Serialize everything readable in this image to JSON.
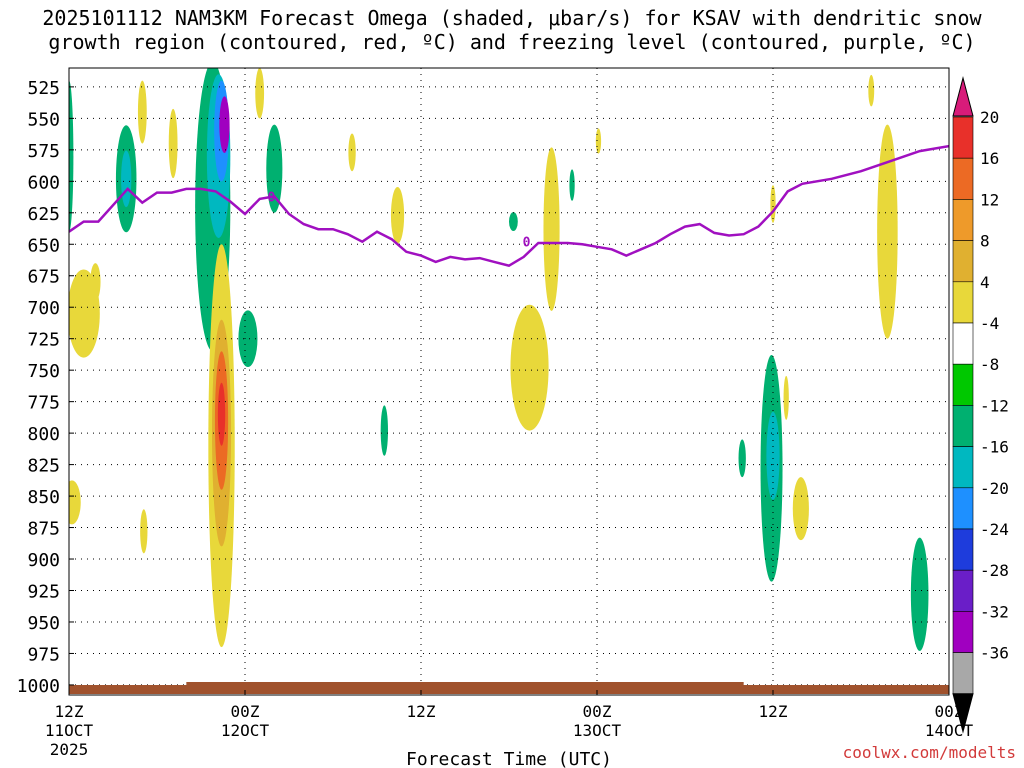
{
  "title": {
    "line1": "2025101112 NAM3KM Forecast Omega (shaded, μbar/s) for KSAV with dendritic snow",
    "line2": "growth region (contoured, red, ºC) and freezing level (contoured, purple, ºC)"
  },
  "watermark": "coolwx.com/modelts",
  "chart_data": {
    "type": "heatmap",
    "xlabel": "Forecast Time (UTC)",
    "x_ticks": [
      {
        "hour": 0,
        "line1": "12Z",
        "line2": "11OCT",
        "line3": "2025"
      },
      {
        "hour": 12,
        "line1": "00Z",
        "line2": "12OCT",
        "line3": ""
      },
      {
        "hour": 24,
        "line1": "12Z",
        "line2": "",
        "line3": ""
      },
      {
        "hour": 36,
        "line1": "00Z",
        "line2": "13OCT",
        "line3": ""
      },
      {
        "hour": 48,
        "line1": "12Z",
        "line2": "",
        "line3": ""
      },
      {
        "hour": 60,
        "line1": "00Z",
        "line2": "14OCT",
        "line3": ""
      }
    ],
    "xlim": [
      0,
      60
    ],
    "y_ticks": [
      525,
      550,
      575,
      600,
      625,
      650,
      675,
      700,
      725,
      750,
      775,
      800,
      825,
      850,
      875,
      900,
      925,
      950,
      975,
      1000
    ],
    "ylim": [
      510,
      1008
    ],
    "colorbar": {
      "labels": [
        "20",
        "16",
        "12",
        "8",
        "4",
        "-4",
        "-8",
        "-12",
        "-16",
        "-20",
        "-24",
        "-28",
        "-32",
        "-36"
      ],
      "colors": [
        "#d81b7a",
        "#e8302a",
        "#ec6a24",
        "#ee9a2a",
        "#e0b030",
        "#e8d83a",
        "#ffffff",
        "#00c800",
        "#00b070",
        "#00b8c0",
        "#1e90ff",
        "#1e3cdc",
        "#6a1ec8",
        "#a000c0",
        "#a8a8a8",
        "#000000"
      ]
    },
    "freezing_level": {
      "color": "#a010c0",
      "label": "0",
      "points": [
        [
          0,
          640
        ],
        [
          1,
          632
        ],
        [
          2,
          632
        ],
        [
          4,
          606
        ],
        [
          5,
          617
        ],
        [
          6,
          609
        ],
        [
          7,
          609
        ],
        [
          8,
          606
        ],
        [
          9,
          606
        ],
        [
          10,
          608
        ],
        [
          11,
          616
        ],
        [
          12,
          626
        ],
        [
          13,
          614
        ],
        [
          14,
          612
        ],
        [
          15,
          626
        ],
        [
          16,
          634
        ],
        [
          17,
          638
        ],
        [
          18,
          638
        ],
        [
          19,
          642
        ],
        [
          20,
          648
        ],
        [
          21,
          640
        ],
        [
          22,
          646
        ],
        [
          23,
          656
        ],
        [
          24,
          659
        ],
        [
          25,
          664
        ],
        [
          26,
          660
        ],
        [
          27,
          662
        ],
        [
          28,
          661
        ],
        [
          29,
          664
        ],
        [
          30,
          667
        ],
        [
          31,
          660
        ],
        [
          32,
          649
        ],
        [
          33,
          649
        ],
        [
          34,
          649
        ],
        [
          35,
          650
        ],
        [
          36,
          652
        ],
        [
          37,
          654
        ],
        [
          38,
          659
        ],
        [
          39,
          654
        ],
        [
          40,
          649
        ],
        [
          41,
          642
        ],
        [
          42,
          636
        ],
        [
          43,
          634
        ],
        [
          44,
          641
        ],
        [
          45,
          643
        ],
        [
          46,
          642
        ],
        [
          47,
          636
        ],
        [
          48,
          624
        ],
        [
          49,
          608
        ],
        [
          50,
          602
        ],
        [
          52,
          598
        ],
        [
          54,
          592
        ],
        [
          56,
          584
        ],
        [
          58,
          576
        ],
        [
          60,
          572
        ]
      ]
    },
    "terrain_color": "#a0522d",
    "omega_regions": [
      {
        "value": -10,
        "x": 0,
        "y": 580,
        "w": 0.3,
        "h": 120
      },
      {
        "value": 5,
        "x": 1.0,
        "y": 705,
        "w": 1.1,
        "h": 70
      },
      {
        "value": 7,
        "x": 1.8,
        "y": 680,
        "w": 0.35,
        "h": 30
      },
      {
        "value": 5,
        "x": 0.2,
        "y": 855,
        "w": 0.6,
        "h": 35
      },
      {
        "value": -8,
        "x": 3.9,
        "y": 598,
        "w": 0.7,
        "h": 85
      },
      {
        "value": -12,
        "x": 3.9,
        "y": 598,
        "w": 0.35,
        "h": 45
      },
      {
        "value": 5,
        "x": 5.0,
        "y": 545,
        "w": 0.3,
        "h": 50
      },
      {
        "value": 5,
        "x": 7.1,
        "y": 570,
        "w": 0.3,
        "h": 55
      },
      {
        "value": 5,
        "x": 5.1,
        "y": 878,
        "w": 0.25,
        "h": 35
      },
      {
        "value": -8,
        "x": 9.8,
        "y": 620,
        "w": 1.2,
        "h": 230
      },
      {
        "value": -12,
        "x": 10.2,
        "y": 580,
        "w": 0.8,
        "h": 130
      },
      {
        "value": -16,
        "x": 10.4,
        "y": 560,
        "w": 0.5,
        "h": 80
      },
      {
        "value": -28,
        "x": 10.6,
        "y": 555,
        "w": 0.35,
        "h": 45
      },
      {
        "value": 5,
        "x": 10.4,
        "y": 810,
        "w": 0.9,
        "h": 320
      },
      {
        "value": 10,
        "x": 10.4,
        "y": 800,
        "w": 0.65,
        "h": 180
      },
      {
        "value": 14,
        "x": 10.4,
        "y": 790,
        "w": 0.45,
        "h": 110
      },
      {
        "value": 18,
        "x": 10.4,
        "y": 785,
        "w": 0.25,
        "h": 50
      },
      {
        "value": 5,
        "x": 13.0,
        "y": 530,
        "w": 0.3,
        "h": 40
      },
      {
        "value": -8,
        "x": 14.0,
        "y": 590,
        "w": 0.55,
        "h": 70
      },
      {
        "value": -8,
        "x": 12.2,
        "y": 725,
        "w": 0.65,
        "h": 45
      },
      {
        "value": 5,
        "x": 19.3,
        "y": 577,
        "w": 0.25,
        "h": 30
      },
      {
        "value": -8,
        "x": 21.5,
        "y": 798,
        "w": 0.25,
        "h": 40
      },
      {
        "value": 5,
        "x": 22.4,
        "y": 627,
        "w": 0.45,
        "h": 45
      },
      {
        "value": -8,
        "x": 30.3,
        "y": 632,
        "w": 0.3,
        "h": 15
      },
      {
        "value": 5,
        "x": 31.4,
        "y": 748,
        "w": 1.3,
        "h": 100
      },
      {
        "value": 5,
        "x": 32.9,
        "y": 638,
        "w": 0.55,
        "h": 130
      },
      {
        "value": -8,
        "x": 34.3,
        "y": 603,
        "w": 0.18,
        "h": 25
      },
      {
        "value": 5,
        "x": 36.1,
        "y": 568,
        "w": 0.18,
        "h": 20
      },
      {
        "value": 5,
        "x": 48.0,
        "y": 618,
        "w": 0.18,
        "h": 30
      },
      {
        "value": -8,
        "x": 47.9,
        "y": 828,
        "w": 0.75,
        "h": 180
      },
      {
        "value": -12,
        "x": 48.0,
        "y": 818,
        "w": 0.45,
        "h": 70
      },
      {
        "value": 5,
        "x": 48.9,
        "y": 772,
        "w": 0.18,
        "h": 35
      },
      {
        "value": -8,
        "x": 45.9,
        "y": 820,
        "w": 0.25,
        "h": 30
      },
      {
        "value": 5,
        "x": 49.9,
        "y": 860,
        "w": 0.55,
        "h": 50
      },
      {
        "value": 5,
        "x": 55.8,
        "y": 640,
        "w": 0.7,
        "h": 170
      },
      {
        "value": 5,
        "x": 54.7,
        "y": 528,
        "w": 0.2,
        "h": 25
      },
      {
        "value": -8,
        "x": 58.0,
        "y": 928,
        "w": 0.6,
        "h": 90
      }
    ]
  }
}
